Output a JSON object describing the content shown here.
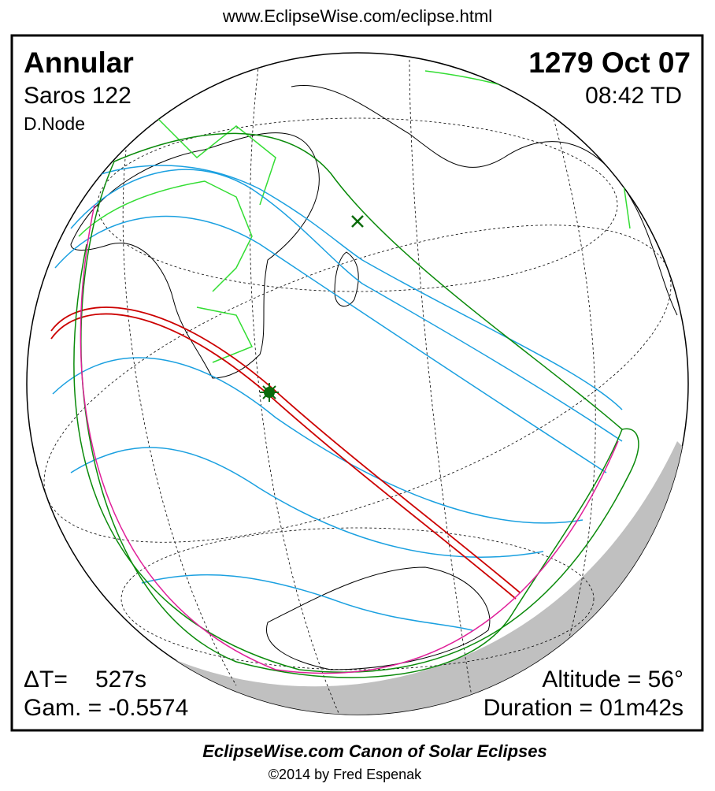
{
  "header": {
    "url": "www.EclipseWise.com/eclipse.html"
  },
  "eclipse": {
    "type": "Annular",
    "saros": "Saros 122",
    "node": "D.Node",
    "date": "1279 Oct 07",
    "time": "08:42 TD"
  },
  "parameters": {
    "delta_t_label": "ΔT=",
    "delta_t": "527s",
    "gamma": "Gam. = -0.5574",
    "altitude": "Altitude = 56°",
    "duration": "Duration = 01m42s"
  },
  "footer": {
    "canon": "EclipseWise.com Canon of Solar Eclipses",
    "copyright": "©2014 by Fred Espenak"
  }
}
